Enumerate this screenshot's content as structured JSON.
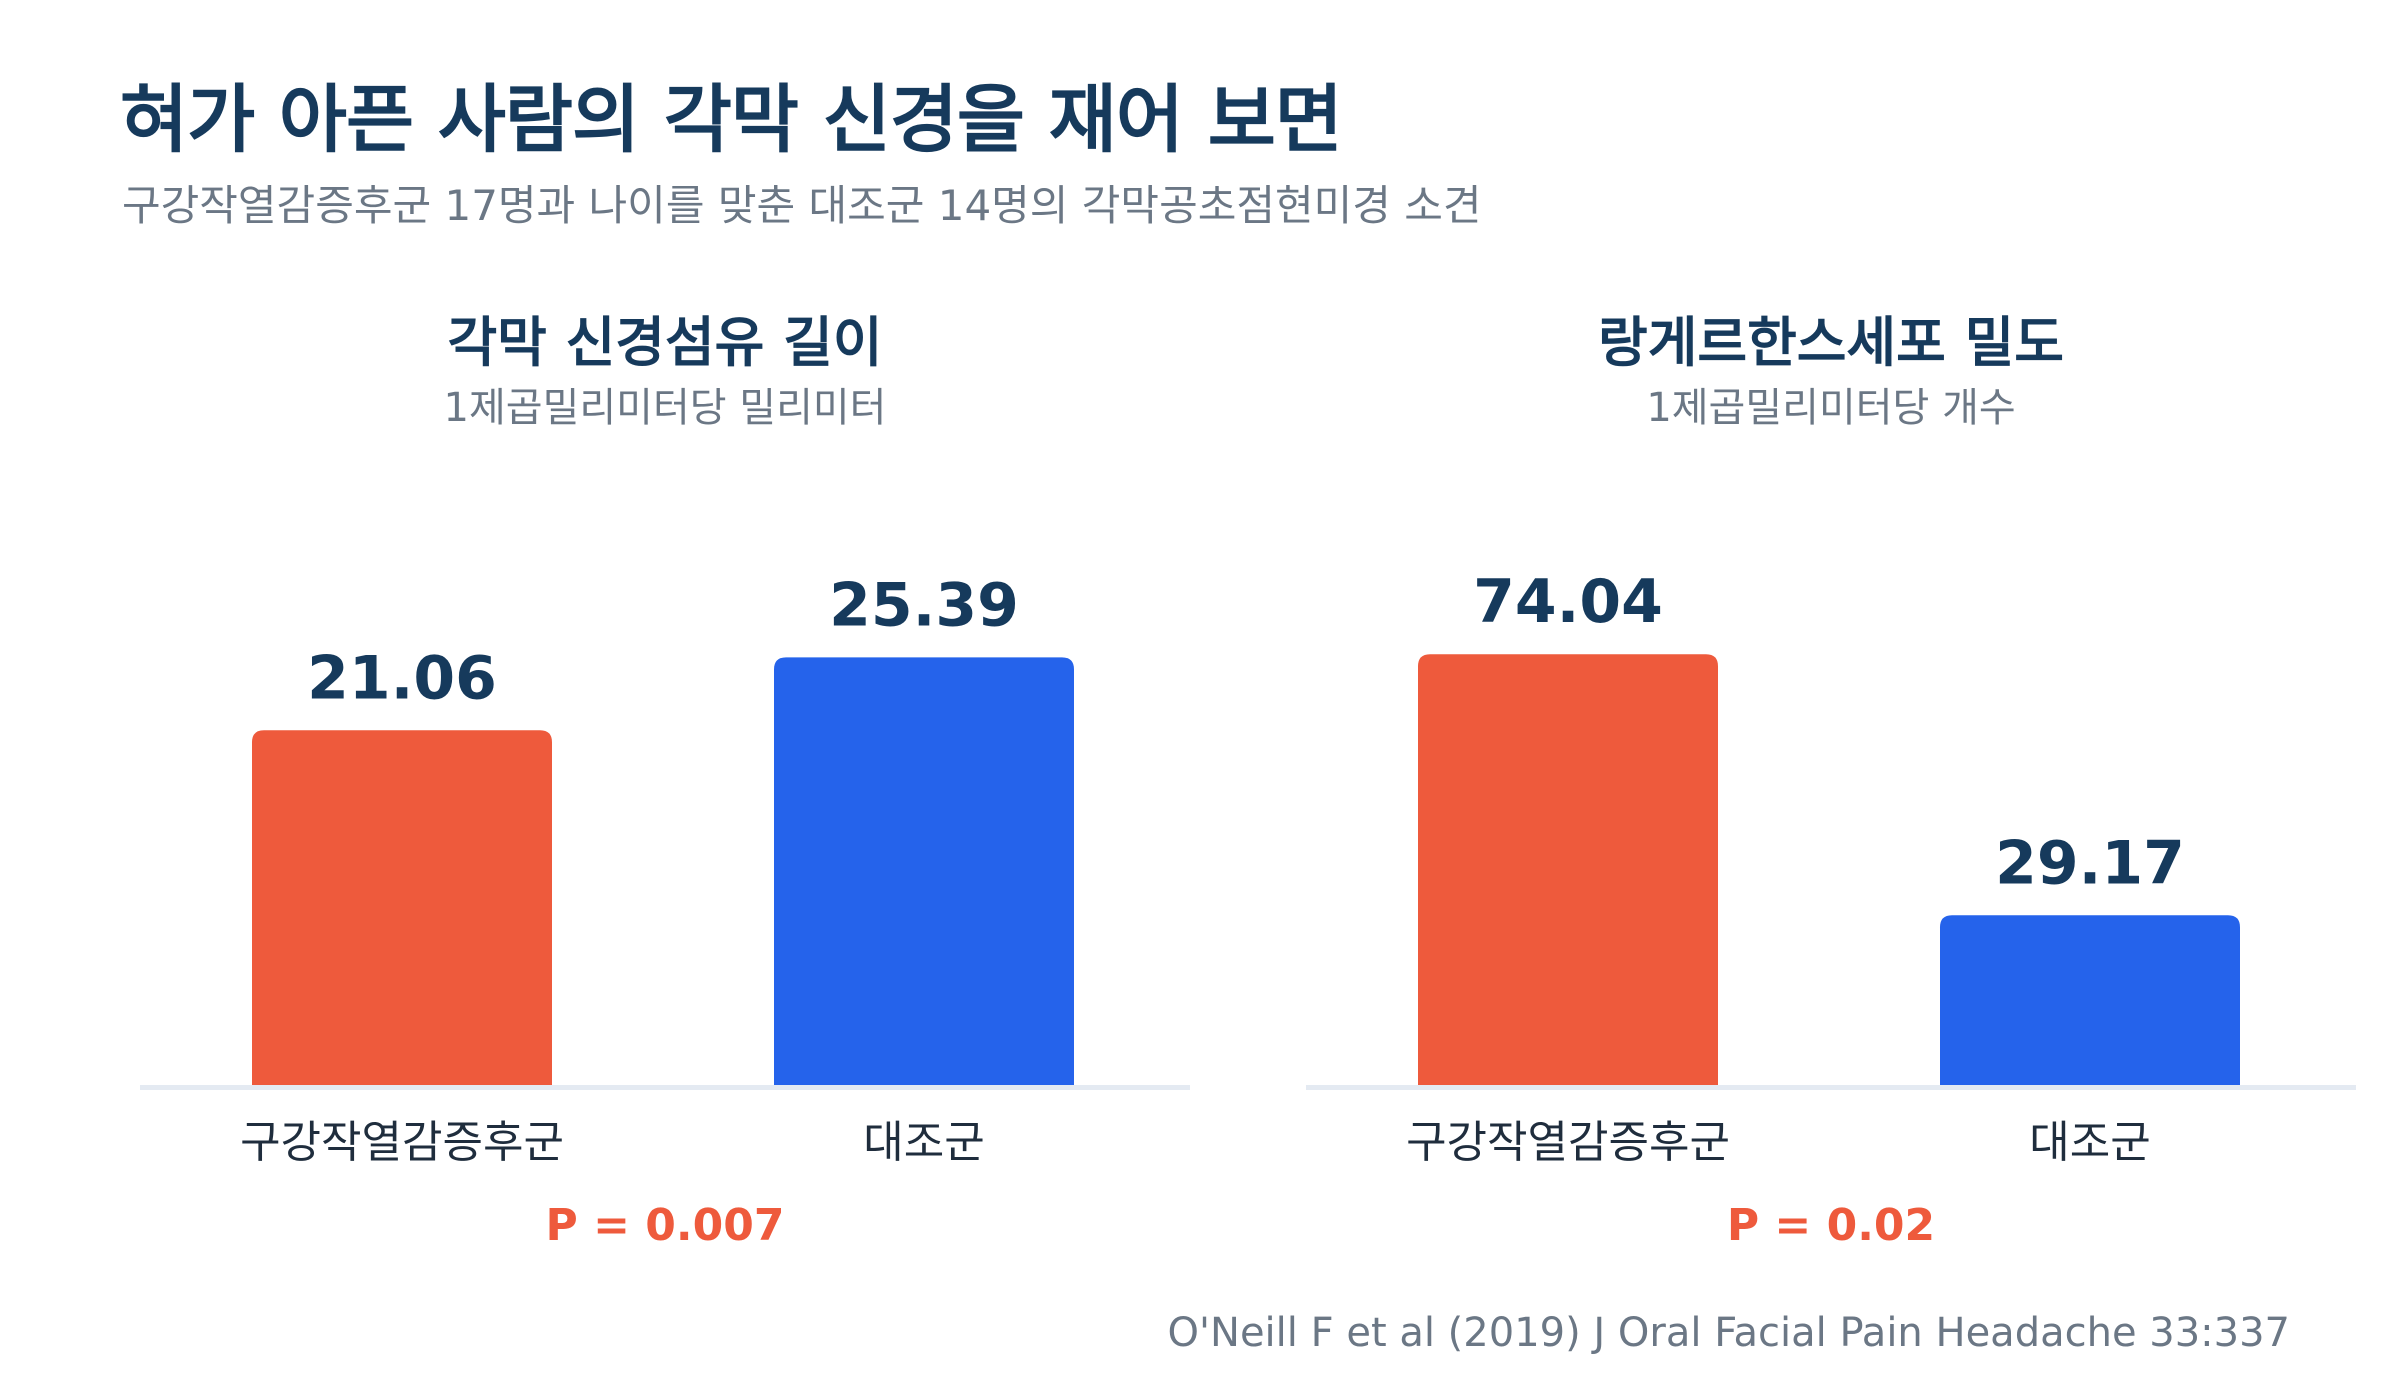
{
  "title": "혀가 아픈 사람의 각막 신경을 재어 보면",
  "subtitle": "구강작열감증후군 17명과 나이를 맞춘 대조군 14명의 각막공초점현미경 소견",
  "citation": "O'Neill F et al (2019) J Oral Facial Pain Headache 33:337",
  "colors": {
    "title": "#163a5c",
    "patient_bar": "#ee5a3c",
    "control_bar": "#2563eb",
    "pvalue": "#ee5a3c",
    "baseline": "#e4eaf2"
  },
  "chart_data": [
    {
      "type": "bar",
      "title": "각막 신경섬유 길이",
      "ylabel": "1제곱밀리미터당 밀리미터",
      "categories": [
        "구강작열감증후군",
        "대조군"
      ],
      "values": [
        21.06,
        25.39
      ],
      "value_labels": [
        "21.06",
        "25.39"
      ],
      "bar_colors": [
        "#ee5a3c",
        "#2563eb"
      ],
      "ylim": [
        0,
        38
      ],
      "grid": false,
      "annotation": "P = 0.007"
    },
    {
      "type": "bar",
      "title": "랑게르한스세포 밀도",
      "ylabel": "1제곱밀리미터당 개수",
      "categories": [
        "구강작열감증후군",
        "대조군"
      ],
      "values": [
        74.04,
        29.17
      ],
      "value_labels": [
        "74.04",
        "29.17"
      ],
      "bar_colors": [
        "#ee5a3c",
        "#2563eb"
      ],
      "ylim": [
        0,
        110
      ],
      "grid": false,
      "annotation": "P = 0.02"
    }
  ]
}
